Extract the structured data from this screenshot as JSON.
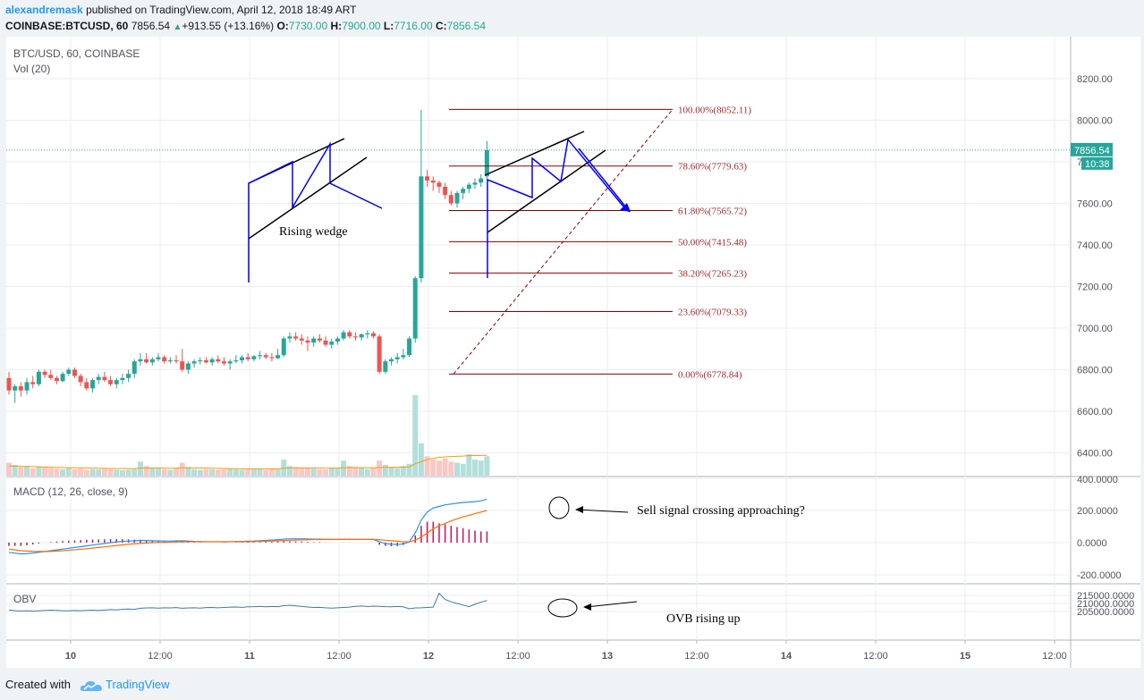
{
  "header": {
    "user": "alexandremask",
    "published": "published on TradingView.com, April 12, 2018 18:49 ART",
    "symbol": "COINBASE:BTCUSD, 60",
    "last": "7856.54",
    "change": "+913.55 (+13.16%)",
    "o_label": "O:",
    "o_value": "7730.00",
    "h_label": "H:",
    "h_value": "7900.00",
    "l_label": "L:",
    "l_value": "7716.00",
    "c_label": "C:",
    "c_value": "7856.54"
  },
  "footer": {
    "created_with": "Created with",
    "brand": "TradingView"
  },
  "colors": {
    "up": "#26a69a",
    "down": "#ef5350",
    "grid": "#e9edf2",
    "fib": "#8b0000",
    "drawing": "#0000ff",
    "macd": "#2196f3",
    "signal": "#ff6d00",
    "obv": "#3c78b4"
  },
  "chart_data": {
    "type": "candlestick",
    "symbol_label": "BTC/USD, 60, COINBASE",
    "vol_label": "Vol (20)",
    "price_axis": {
      "ticks": [
        "8200.00",
        "8000.00",
        "7800.00",
        "7600.00",
        "7400.00",
        "7200.00",
        "7000.00",
        "6800.00",
        "6600.00",
        "6400.00"
      ],
      "ylim": [
        6300,
        8400
      ],
      "last_price": "7856.54",
      "countdown": "10:38"
    },
    "time_axis": {
      "labels": [
        "10",
        "12:00",
        "11",
        "12:00",
        "12",
        "12:00",
        "13",
        "12:00",
        "14",
        "12:00",
        "15",
        "12:00"
      ],
      "day_labels": [
        "10",
        "11",
        "12",
        "13",
        "14",
        "15"
      ]
    },
    "candles_ohlc": [
      [
        6760,
        6790,
        6680,
        6700
      ],
      [
        6700,
        6730,
        6640,
        6720
      ],
      [
        6720,
        6740,
        6670,
        6700
      ],
      [
        6700,
        6760,
        6680,
        6740
      ],
      [
        6740,
        6770,
        6710,
        6730
      ],
      [
        6730,
        6800,
        6720,
        6790
      ],
      [
        6790,
        6800,
        6760,
        6775
      ],
      [
        6775,
        6800,
        6750,
        6760
      ],
      [
        6760,
        6770,
        6730,
        6745
      ],
      [
        6745,
        6790,
        6740,
        6780
      ],
      [
        6780,
        6810,
        6770,
        6800
      ],
      [
        6800,
        6810,
        6760,
        6770
      ],
      [
        6770,
        6780,
        6720,
        6740
      ],
      [
        6740,
        6760,
        6700,
        6710
      ],
      [
        6710,
        6760,
        6690,
        6750
      ],
      [
        6750,
        6780,
        6730,
        6765
      ],
      [
        6765,
        6790,
        6740,
        6750
      ],
      [
        6750,
        6770,
        6720,
        6730
      ],
      [
        6730,
        6760,
        6710,
        6750
      ],
      [
        6750,
        6780,
        6730,
        6760
      ],
      [
        6760,
        6800,
        6740,
        6780
      ],
      [
        6780,
        6850,
        6760,
        6840
      ],
      [
        6840,
        6880,
        6820,
        6850
      ],
      [
        6850,
        6880,
        6830,
        6835
      ],
      [
        6835,
        6860,
        6820,
        6850
      ],
      [
        6850,
        6880,
        6840,
        6860
      ],
      [
        6860,
        6870,
        6830,
        6840
      ],
      [
        6840,
        6860,
        6830,
        6845
      ],
      [
        6845,
        6870,
        6830,
        6840
      ],
      [
        6840,
        6900,
        6790,
        6800
      ],
      [
        6800,
        6840,
        6780,
        6830
      ],
      [
        6830,
        6850,
        6810,
        6840
      ],
      [
        6840,
        6860,
        6825,
        6845
      ],
      [
        6845,
        6860,
        6830,
        6835
      ],
      [
        6835,
        6860,
        6820,
        6850
      ],
      [
        6850,
        6870,
        6830,
        6840
      ],
      [
        6840,
        6860,
        6820,
        6830
      ],
      [
        6830,
        6850,
        6800,
        6840
      ],
      [
        6840,
        6870,
        6830,
        6845
      ],
      [
        6845,
        6870,
        6830,
        6860
      ],
      [
        6860,
        6880,
        6840,
        6850
      ],
      [
        6850,
        6870,
        6840,
        6865
      ],
      [
        6865,
        6890,
        6850,
        6870
      ],
      [
        6870,
        6880,
        6850,
        6860
      ],
      [
        6860,
        6880,
        6840,
        6855
      ],
      [
        6855,
        6900,
        6850,
        6870
      ],
      [
        6870,
        6960,
        6860,
        6950
      ],
      [
        6950,
        6980,
        6930,
        6960
      ],
      [
        6960,
        6980,
        6940,
        6950
      ],
      [
        6950,
        6970,
        6920,
        6940
      ],
      [
        6940,
        6960,
        6890,
        6930
      ],
      [
        6930,
        6960,
        6910,
        6950
      ],
      [
        6950,
        6970,
        6930,
        6940
      ],
      [
        6940,
        6960,
        6910,
        6920
      ],
      [
        6920,
        6950,
        6900,
        6935
      ],
      [
        6935,
        6960,
        6920,
        6950
      ],
      [
        6950,
        6990,
        6940,
        6980
      ],
      [
        6980,
        6990,
        6950,
        6960
      ],
      [
        6960,
        6980,
        6940,
        6955
      ],
      [
        6955,
        6975,
        6940,
        6970
      ],
      [
        6970,
        6990,
        6950,
        6975
      ],
      [
        6975,
        6985,
        6950,
        6960
      ],
      [
        6960,
        6970,
        6780,
        6790
      ],
      [
        6790,
        6850,
        6780,
        6840
      ],
      [
        6840,
        6860,
        6820,
        6850
      ],
      [
        6850,
        6880,
        6830,
        6860
      ],
      [
        6860,
        6900,
        6850,
        6870
      ],
      [
        6870,
        6960,
        6860,
        6950
      ],
      [
        6950,
        7250,
        6930,
        7240
      ],
      [
        7240,
        8050,
        7220,
        7730
      ],
      [
        7730,
        7760,
        7680,
        7710
      ],
      [
        7710,
        7730,
        7660,
        7700
      ],
      [
        7700,
        7710,
        7650,
        7680
      ],
      [
        7680,
        7700,
        7620,
        7640
      ],
      [
        7640,
        7660,
        7590,
        7600
      ],
      [
        7600,
        7660,
        7580,
        7650
      ],
      [
        7650,
        7680,
        7620,
        7670
      ],
      [
        7670,
        7700,
        7650,
        7690
      ],
      [
        7690,
        7720,
        7670,
        7700
      ],
      [
        7700,
        7740,
        7680,
        7720
      ],
      [
        7730,
        7900,
        7716,
        7856.54
      ]
    ],
    "volume": [
      120,
      100,
      80,
      90,
      70,
      85,
      75,
      70,
      65,
      60,
      70,
      60,
      65,
      55,
      60,
      58,
      62,
      60,
      55,
      50,
      55,
      60,
      130,
      90,
      70,
      65,
      60,
      55,
      70,
      120,
      80,
      60,
      55,
      60,
      58,
      55,
      60,
      62,
      58,
      55,
      60,
      58,
      60,
      55,
      65,
      60,
      150,
      90,
      80,
      75,
      70,
      65,
      60,
      58,
      70,
      65,
      140,
      90,
      80,
      70,
      60,
      70,
      140,
      100,
      80,
      70,
      90,
      110,
      750,
      300,
      180,
      150,
      140,
      160,
      130,
      120,
      110,
      200,
      150,
      140,
      180
    ],
    "ma_volume": [
      90,
      88,
      86,
      85,
      84,
      82,
      80,
      78,
      76,
      75,
      74,
      73,
      72,
      71,
      70,
      69,
      68,
      67,
      66,
      66,
      66,
      67,
      70,
      71,
      71,
      71,
      70,
      69,
      70,
      73,
      73,
      72,
      71,
      70,
      69,
      68,
      67,
      66,
      65,
      64,
      64,
      64,
      64,
      64,
      64,
      64,
      69,
      71,
      72,
      72,
      72,
      72,
      71,
      70,
      70,
      70,
      73,
      74,
      74,
      74,
      73,
      73,
      76,
      77,
      78,
      78,
      79,
      81,
      110,
      130,
      150,
      160,
      170,
      175,
      178,
      180,
      182,
      186,
      188,
      189,
      190
    ],
    "fib": [
      {
        "label": "100.00%(8052.11)",
        "value": 8052.11
      },
      {
        "label": "78.60%(7779.63)",
        "value": 7779.63
      },
      {
        "label": "61.80%(7565.72)",
        "value": 7565.72
      },
      {
        "label": "50.00%(7415.48)",
        "value": 7415.48
      },
      {
        "label": "38.20%(7265.23)",
        "value": 7265.23
      },
      {
        "label": "23.60%(7079.33)",
        "value": 7079.33
      },
      {
        "label": "0.00%(6778.84)",
        "value": 6778.84
      }
    ],
    "annotations": {
      "rising_wedge": "Rising wedge",
      "sell_signal": "Sell signal crossing approaching?",
      "ovb": "OVB rising up"
    },
    "macd": {
      "label": "MACD (12, 26, close, 9)",
      "ticks": [
        "400.0000",
        "200.0000",
        "0.0000",
        "-200.0000"
      ],
      "ylim": [
        -240,
        400
      ],
      "macd": [
        -60,
        -65,
        -70,
        -68,
        -65,
        -60,
        -55,
        -50,
        -45,
        -40,
        -35,
        -30,
        -25,
        -20,
        -15,
        -10,
        -5,
        0,
        5,
        8,
        10,
        12,
        14,
        13,
        12,
        11,
        10,
        10,
        11,
        12,
        10,
        8,
        7,
        6,
        6,
        6,
        5,
        6,
        7,
        8,
        9,
        10,
        12,
        14,
        16,
        18,
        22,
        24,
        24,
        24,
        23,
        22,
        22,
        21,
        20,
        20,
        21,
        21,
        20,
        20,
        20,
        20,
        5,
        -5,
        -10,
        -12,
        -8,
        5,
        60,
        140,
        190,
        215,
        225,
        235,
        240,
        245,
        250,
        252,
        255,
        260,
        270
      ],
      "signal": [
        -40,
        -45,
        -50,
        -52,
        -54,
        -55,
        -55,
        -54,
        -52,
        -50,
        -47,
        -44,
        -41,
        -38,
        -34,
        -30,
        -26,
        -22,
        -18,
        -14,
        -10,
        -7,
        -4,
        -2,
        0,
        1,
        2,
        3,
        4,
        5,
        6,
        6,
        6,
        6,
        6,
        6,
        6,
        6,
        6,
        6,
        6,
        7,
        8,
        9,
        10,
        11,
        13,
        15,
        16,
        17,
        18,
        19,
        19,
        20,
        20,
        20,
        20,
        20,
        20,
        20,
        20,
        20,
        18,
        15,
        12,
        9,
        6,
        6,
        15,
        35,
        60,
        85,
        105,
        120,
        135,
        148,
        160,
        170,
        180,
        190,
        200
      ]
    },
    "obv": {
      "label": "OBV",
      "ticks": [
        "215000.0000",
        "210000.0000",
        "205000.0000"
      ],
      "ylim": [
        204500,
        217000
      ],
      "values": [
        206000,
        205500,
        205300,
        205500,
        205200,
        205400,
        205600,
        205800,
        205700,
        205500,
        205400,
        205600,
        205500,
        205700,
        205800,
        205600,
        205900,
        206200,
        206000,
        206400,
        206500,
        206300,
        207000,
        207200,
        207300,
        207100,
        207300,
        207200,
        207400,
        207000,
        207200,
        207300,
        207100,
        207400,
        207500,
        207300,
        207500,
        207700,
        207800,
        207600,
        207900,
        208000,
        208200,
        207900,
        208100,
        208000,
        208600,
        208800,
        208500,
        208200,
        207800,
        207500,
        207600,
        207300,
        207100,
        207300,
        207500,
        207700,
        208200,
        208400,
        208100,
        208300,
        208200,
        208000,
        207900,
        208100,
        207900,
        206700,
        207200,
        207300,
        207500,
        207700,
        216300,
        212500,
        211000,
        210000,
        209000,
        208000,
        209500,
        210800,
        211800
      ]
    }
  }
}
